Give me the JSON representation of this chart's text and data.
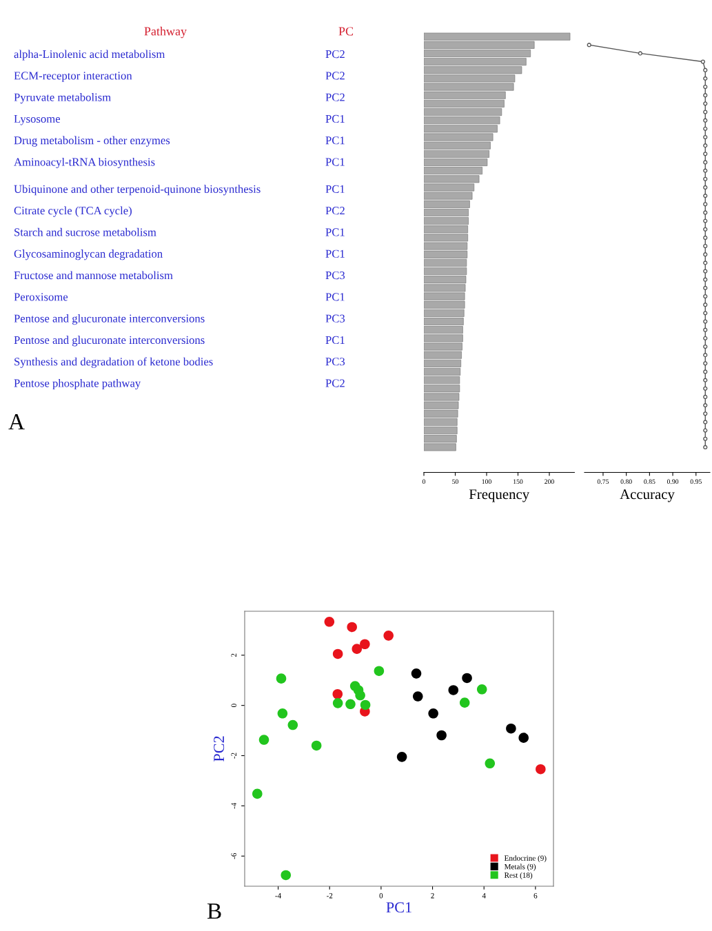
{
  "chart_data": [
    {
      "type": "other",
      "annotations": [
        "Pathway",
        "PC",
        "alpha-Linolenic acid metabolism",
        "PC2",
        "ECM-receptor interaction",
        "PC2",
        "Pyruvate metabolism",
        "PC2",
        "Lysosome",
        "PC1",
        "Drug metabolism - other enzymes",
        "PC1",
        "Aminoacyl-tRNA biosynthesis",
        "PC1",
        "Ubiquinone and other terpenoid-quinone biosynthesis",
        "PC1",
        "Citrate cycle (TCA cycle)",
        "PC2",
        "Starch and sucrose metabolism",
        "PC1",
        "Glycosaminoglycan degradation",
        "PC1",
        "Fructose and mannose metabolism",
        "PC3",
        "Peroxisome",
        "PC1",
        "Pentose and glucuronate interconversions",
        "PC3",
        "Pentose and glucuronate interconversions",
        "PC1",
        "Synthesis and degradation of ketone bodies",
        "PC3",
        "Pentose phosphate pathway",
        "PC2",
        "A"
      ]
    },
    {
      "type": "bar",
      "orientation": "horizontal",
      "color": "#a9a9a9",
      "xlabel": "Frequency",
      "xlim": [
        0,
        240
      ],
      "xticks": [
        0,
        50,
        100,
        150,
        200
      ],
      "tick_labels": "x",
      "categories": [
        null,
        null,
        null,
        null,
        null,
        null,
        null,
        null,
        null,
        null,
        null,
        null,
        null,
        null,
        null,
        null,
        null,
        null,
        null,
        null,
        null,
        null,
        null,
        null,
        null,
        null,
        null,
        null,
        null,
        null,
        null,
        null,
        null,
        null,
        null,
        null,
        null,
        null,
        null,
        null,
        null,
        null,
        null,
        null,
        null,
        null,
        null,
        null,
        null,
        null
      ],
      "values": [
        233,
        176,
        170,
        163,
        156,
        145,
        143,
        130,
        128,
        124,
        121,
        117,
        110,
        106,
        104,
        101,
        93,
        88,
        80,
        77,
        73,
        71,
        71,
        70,
        70,
        69,
        69,
        68,
        68,
        67,
        66,
        65,
        65,
        64,
        63,
        62,
        62,
        61,
        60,
        59,
        58,
        57,
        57,
        56,
        55,
        54,
        53,
        53,
        52,
        51
      ]
    },
    {
      "type": "line",
      "orientation": "horizontal",
      "color": "#555555",
      "marker": "circle",
      "xlabel": "Accuracy",
      "xlim": [
        0.71,
        0.98
      ],
      "xticks": [
        {
          "value": 0.75,
          "label": "0.75"
        },
        {
          "value": 0.8,
          "label": "0.80"
        },
        {
          "value": 0.85,
          "label": "0.85"
        },
        {
          "value": 0.9,
          "label": "0.90"
        },
        {
          "value": 0.95,
          "label": "0.95"
        }
      ],
      "tick_labels": "x",
      "categories": [
        null,
        null,
        null,
        null,
        null,
        null,
        null,
        null,
        null,
        null,
        null,
        null,
        null,
        null,
        null,
        null,
        null,
        null,
        null,
        null,
        null,
        null,
        null,
        null,
        null,
        null,
        null,
        null,
        null,
        null,
        null,
        null,
        null,
        null,
        null,
        null,
        null,
        null,
        null,
        null,
        null,
        null,
        null,
        null,
        null,
        null,
        null,
        null,
        null,
        null
      ],
      "values": [
        null,
        0.72,
        0.83,
        0.965,
        0.97,
        0.97,
        0.97,
        0.97,
        0.97,
        0.97,
        0.97,
        0.97,
        0.97,
        0.97,
        0.97,
        0.97,
        0.97,
        0.97,
        0.97,
        0.97,
        0.97,
        0.97,
        0.97,
        0.97,
        0.97,
        0.97,
        0.97,
        0.97,
        0.97,
        0.97,
        0.97,
        0.97,
        0.97,
        0.97,
        0.97,
        0.97,
        0.97,
        0.97,
        0.97,
        0.97,
        0.97,
        0.97,
        0.97,
        0.97,
        0.97,
        0.97,
        0.97,
        0.97,
        0.97,
        0.97
      ]
    },
    {
      "type": "scatter",
      "xlabel": "PC1",
      "ylabel": "PC2",
      "xlim": [
        -5.3,
        6.7
      ],
      "ylim": [
        -7.2,
        3.75
      ],
      "xticks": [
        -4,
        -2,
        0,
        2,
        4,
        6
      ],
      "yticks": [
        -6,
        -4,
        -2,
        0,
        2
      ],
      "legend": "bottom right",
      "marker": "circle",
      "annotations": [
        "B"
      ],
      "series": [
        {
          "name": "Endocrine (9)",
          "color": "#e8141c",
          "x": [
            -2.01,
            -1.13,
            0.29,
            -0.63,
            -0.94,
            -1.68,
            -1.69,
            -0.63,
            6.2
          ],
          "values": [
            3.33,
            3.12,
            2.78,
            2.44,
            2.25,
            2.05,
            0.45,
            -0.24,
            -2.54
          ]
        },
        {
          "name": "Metals (9)",
          "color": "#000000",
          "x": [
            1.37,
            3.34,
            2.81,
            1.43,
            2.03,
            2.35,
            5.05,
            5.54,
            0.81
          ],
          "values": [
            1.27,
            1.09,
            0.61,
            0.36,
            -0.32,
            -1.19,
            -0.92,
            -1.29,
            -2.05
          ]
        },
        {
          "name": "Rest (18)",
          "color": "#22c51e",
          "x": [
            -0.08,
            -3.88,
            -1.01,
            -0.88,
            -0.81,
            -1.68,
            -1.19,
            -0.61,
            3.92,
            3.25,
            -3.83,
            -3.43,
            -4.55,
            -2.51,
            4.23,
            -4.81,
            -3.7
          ],
          "values": [
            1.37,
            1.07,
            0.77,
            0.61,
            0.4,
            0.09,
            0.05,
            0.02,
            0.64,
            0.11,
            -0.32,
            -0.78,
            -1.37,
            -1.6,
            -2.31,
            -3.52,
            -6.76
          ]
        }
      ]
    }
  ]
}
